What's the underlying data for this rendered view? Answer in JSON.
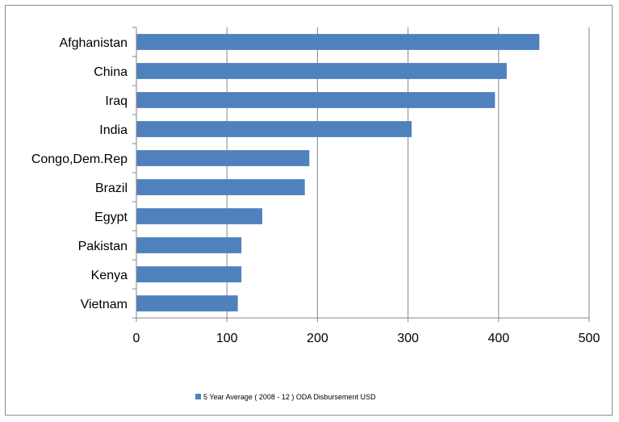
{
  "chart_data": {
    "type": "bar",
    "orientation": "horizontal",
    "categories": [
      "Afghanistan",
      "China",
      "Iraq",
      "India",
      "Congo,Dem.Rep",
      "Brazil",
      "Egypt",
      "Pakistan",
      "Kenya",
      "Vietnam"
    ],
    "series": [
      {
        "name": "5 Year Average ( 2008 - 12 ) ODA Disbursement USD",
        "values": [
          445,
          409,
          396,
          304,
          191,
          186,
          139,
          116,
          116,
          112
        ]
      }
    ],
    "xlim": [
      0,
      500
    ],
    "xticks": [
      0,
      100,
      200,
      300,
      400,
      500
    ],
    "grid": "vertical",
    "legend": "bottom",
    "colors": {
      "bar": "#4f81bd",
      "grid": "#878787",
      "axis": "#878787"
    }
  }
}
